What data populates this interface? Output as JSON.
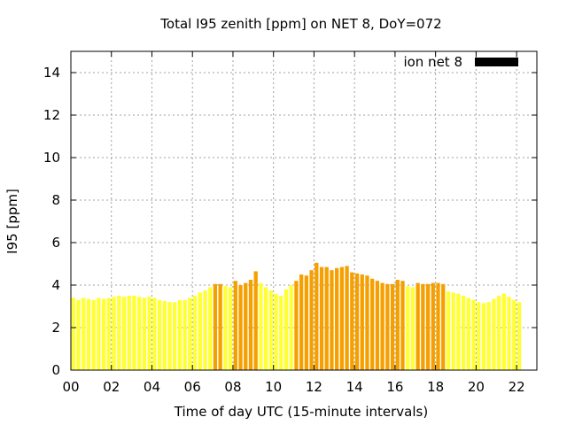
{
  "chart_data": {
    "type": "bar",
    "title": "Total I95 zenith [ppm] on NET 8, DoY=072",
    "xlabel": "Time of day UTC (15-minute intervals)",
    "ylabel": "I95 [ppm]",
    "xlim": [
      0,
      23
    ],
    "ylim": [
      0,
      15
    ],
    "bin_hours": 0.25,
    "x_ticks": [
      {
        "value": 0,
        "label": "00"
      },
      {
        "value": 2,
        "label": "02"
      },
      {
        "value": 4,
        "label": "04"
      },
      {
        "value": 6,
        "label": "06"
      },
      {
        "value": 8,
        "label": "08"
      },
      {
        "value": 10,
        "label": "10"
      },
      {
        "value": 12,
        "label": "12"
      },
      {
        "value": 14,
        "label": "14"
      },
      {
        "value": 16,
        "label": "16"
      },
      {
        "value": 18,
        "label": "18"
      },
      {
        "value": 20,
        "label": "20"
      },
      {
        "value": 22,
        "label": "22"
      }
    ],
    "y_ticks": [
      {
        "value": 0,
        "label": "0"
      },
      {
        "value": 2,
        "label": "2"
      },
      {
        "value": 4,
        "label": "4"
      },
      {
        "value": 6,
        "label": "6"
      },
      {
        "value": 8,
        "label": "8"
      },
      {
        "value": 10,
        "label": "10"
      },
      {
        "value": 12,
        "label": "12"
      },
      {
        "value": 14,
        "label": "14"
      }
    ],
    "grid": true,
    "legend": {
      "label": "ion net 8",
      "position": "top-right",
      "color": "#000000"
    },
    "colors": {
      "low": "#ffff33",
      "high": "#f5a000",
      "grid": "#a0a0a0"
    },
    "series": [
      {
        "values": [
          3.4,
          3.3,
          3.4,
          3.35,
          3.3,
          3.4,
          3.35,
          3.4,
          3.45,
          3.5,
          3.45,
          3.5,
          3.5,
          3.45,
          3.4,
          3.45,
          3.4,
          3.3,
          3.25,
          3.2,
          3.2,
          3.3,
          3.3,
          3.4,
          3.5,
          3.65,
          3.75,
          3.9,
          4.05,
          4.05,
          3.95,
          3.9,
          4.2,
          4.0,
          4.1,
          4.25,
          4.65,
          4.1,
          3.9,
          3.75,
          3.6,
          3.5,
          3.8,
          4.0,
          4.2,
          4.5,
          4.45,
          4.7,
          5.05,
          4.85,
          4.85,
          4.7,
          4.8,
          4.85,
          4.9,
          4.6,
          4.55,
          4.5,
          4.45,
          4.3,
          4.2,
          4.1,
          4.05,
          4.05,
          4.25,
          4.2,
          3.95,
          3.9,
          4.1,
          4.05,
          4.05,
          4.1,
          4.1,
          4.05,
          3.7,
          3.65,
          3.6,
          3.5,
          3.4,
          3.3,
          3.2,
          3.15,
          3.2,
          3.35,
          3.5,
          3.6,
          3.45,
          3.3,
          3.2
        ],
        "color_codes": [
          "L",
          "L",
          "L",
          "L",
          "L",
          "L",
          "L",
          "L",
          "L",
          "L",
          "L",
          "L",
          "L",
          "L",
          "L",
          "L",
          "L",
          "L",
          "L",
          "L",
          "L",
          "L",
          "L",
          "L",
          "L",
          "L",
          "L",
          "L",
          "H",
          "H",
          "L",
          "L",
          "H",
          "H",
          "H",
          "H",
          "H",
          "L",
          "L",
          "L",
          "L",
          "L",
          "L",
          "L",
          "H",
          "H",
          "H",
          "H",
          "H",
          "H",
          "H",
          "H",
          "H",
          "H",
          "H",
          "H",
          "H",
          "H",
          "H",
          "H",
          "H",
          "H",
          "H",
          "H",
          "H",
          "H",
          "L",
          "L",
          "H",
          "H",
          "H",
          "H",
          "H",
          "H",
          "L",
          "L",
          "L",
          "L",
          "L",
          "L",
          "L",
          "L",
          "L",
          "L",
          "L",
          "L",
          "L",
          "L",
          "L"
        ]
      }
    ]
  }
}
